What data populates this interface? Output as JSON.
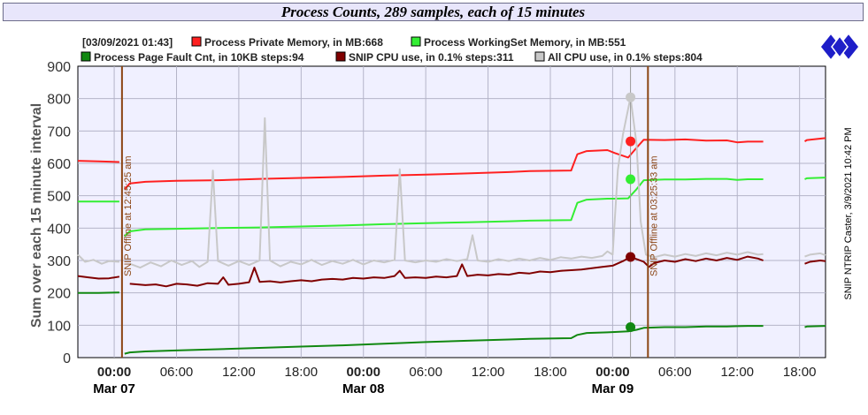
{
  "window": {
    "side_label": "SNIP NTRIP Caster, 3/9/2021 10:42 PM"
  },
  "logo": {
    "icon": "snip-diamond-logo-icon",
    "colors": [
      "#1e1ec8",
      "#ffffff"
    ]
  },
  "chart_data": {
    "type": "line",
    "title": "Process Counts, 289 samples, each of 15 minutes",
    "ylabel": "Sum over each 15 minute interval",
    "xlabel": "",
    "ylim": [
      0,
      900
    ],
    "y_ticks": [
      0,
      100,
      200,
      300,
      400,
      500,
      600,
      700,
      800,
      900
    ],
    "x_range_hours": [
      -3.5,
      68.5
    ],
    "grid": true,
    "legend_position": "top",
    "plot_background": "#f0f0ff",
    "x_ticks": [
      {
        "h": 0,
        "label": "00:00",
        "day": "Mar 07"
      },
      {
        "h": 6,
        "label": "06:00"
      },
      {
        "h": 12,
        "label": "12:00"
      },
      {
        "h": 18,
        "label": "18:00"
      },
      {
        "h": 24,
        "label": "00:00",
        "day": "Mar 08"
      },
      {
        "h": 30,
        "label": "06:00"
      },
      {
        "h": 36,
        "label": "12:00"
      },
      {
        "h": 42,
        "label": "18:00"
      },
      {
        "h": 48,
        "label": "00:00",
        "day": "Mar 09"
      },
      {
        "h": 54,
        "label": "06:00"
      },
      {
        "h": 60,
        "label": "12:00"
      },
      {
        "h": 66,
        "label": "18:00"
      }
    ],
    "legend_header": "[03/09/2021 01:43]",
    "cursor": {
      "h": 49.72,
      "label": "[03/09/2021 01:43]"
    },
    "annotations": [
      {
        "h": 0.75,
        "text": "SNIP Offline at 12:45:25 am",
        "color": "#8b4513"
      },
      {
        "h": 51.4,
        "text": "SNIP Offline at 03:25:33 am",
        "color": "#8b4513"
      }
    ],
    "series": [
      {
        "name": "Process Private Memory, in MB:668",
        "color": "#ff2020",
        "width": 2,
        "marker_value": 668,
        "points": [
          [
            -3.5,
            608
          ],
          [
            -1.5,
            606
          ],
          [
            0.5,
            604
          ],
          [
            null,
            null
          ],
          [
            1.0,
            520
          ],
          [
            1.5,
            538
          ],
          [
            3,
            543
          ],
          [
            6,
            546
          ],
          [
            10,
            548
          ],
          [
            14,
            552
          ],
          [
            18,
            555
          ],
          [
            22,
            558
          ],
          [
            26,
            562
          ],
          [
            30,
            565
          ],
          [
            34,
            569
          ],
          [
            38,
            573
          ],
          [
            40,
            576
          ],
          [
            44,
            578
          ],
          [
            44.6,
            628
          ],
          [
            45.5,
            638
          ],
          [
            47.5,
            641
          ],
          [
            48.2,
            632
          ],
          [
            49.5,
            618
          ],
          [
            50.3,
            648
          ],
          [
            51,
            673
          ],
          [
            53,
            672
          ],
          [
            55,
            674
          ],
          [
            57,
            670
          ],
          [
            59,
            671
          ],
          [
            60,
            665
          ],
          [
            61,
            667
          ],
          [
            62.5,
            667
          ],
          [
            null,
            null
          ],
          [
            66.5,
            668
          ],
          [
            66.7,
            672
          ],
          [
            68.5,
            678
          ]
        ]
      },
      {
        "name": "Process WorkingSet Memory, in MB:551",
        "color": "#33ee33",
        "width": 2,
        "marker_value": 551,
        "points": [
          [
            -3.5,
            482
          ],
          [
            -1.5,
            482
          ],
          [
            0.5,
            482
          ],
          [
            null,
            null
          ],
          [
            1.0,
            375
          ],
          [
            1.5,
            390
          ],
          [
            3,
            396
          ],
          [
            6,
            398
          ],
          [
            10,
            400
          ],
          [
            14,
            402
          ],
          [
            18,
            405
          ],
          [
            22,
            408
          ],
          [
            26,
            412
          ],
          [
            30,
            415
          ],
          [
            34,
            418
          ],
          [
            38,
            421
          ],
          [
            40,
            423
          ],
          [
            44,
            425
          ],
          [
            44.6,
            478
          ],
          [
            45.5,
            488
          ],
          [
            47.5,
            491
          ],
          [
            48.2,
            491
          ],
          [
            49.5,
            492
          ],
          [
            50.3,
            520
          ],
          [
            51,
            548
          ],
          [
            53,
            550
          ],
          [
            55,
            550
          ],
          [
            57,
            552
          ],
          [
            59,
            552
          ],
          [
            60,
            549
          ],
          [
            61,
            551
          ],
          [
            62.5,
            551
          ],
          [
            null,
            null
          ],
          [
            66.5,
            551
          ],
          [
            66.7,
            554
          ],
          [
            68.5,
            556
          ]
        ]
      },
      {
        "name": "Process Page Fault Cnt, in 10KB steps:94",
        "color": "#118811",
        "width": 2,
        "marker_value": 94,
        "points": [
          [
            -3.5,
            200
          ],
          [
            -1.5,
            200
          ],
          [
            0.5,
            201
          ],
          [
            null,
            null
          ],
          [
            1.0,
            12
          ],
          [
            1.5,
            16
          ],
          [
            3,
            19
          ],
          [
            6,
            22
          ],
          [
            10,
            26
          ],
          [
            14,
            30
          ],
          [
            18,
            34
          ],
          [
            22,
            38
          ],
          [
            26,
            43
          ],
          [
            30,
            48
          ],
          [
            34,
            52
          ],
          [
            38,
            56
          ],
          [
            40,
            58
          ],
          [
            44,
            60
          ],
          [
            44.6,
            70
          ],
          [
            45.5,
            76
          ],
          [
            47.5,
            78
          ],
          [
            48.2,
            79
          ],
          [
            49.5,
            81
          ],
          [
            50.3,
            86
          ],
          [
            51,
            92
          ],
          [
            53,
            94
          ],
          [
            55,
            94
          ],
          [
            57,
            96
          ],
          [
            59,
            96
          ],
          [
            60,
            97
          ],
          [
            61,
            98
          ],
          [
            62.5,
            98
          ],
          [
            null,
            null
          ],
          [
            66.5,
            94
          ],
          [
            66.7,
            96
          ],
          [
            68.5,
            98
          ]
        ]
      },
      {
        "name": "SNIP CPU use, in 0.1% steps:311",
        "color": "#800000",
        "width": 2,
        "marker_value": 311,
        "points": [
          [
            -3.5,
            252
          ],
          [
            -2.5,
            248
          ],
          [
            -1.5,
            244
          ],
          [
            -0.5,
            245
          ],
          [
            0.5,
            250
          ],
          [
            null,
            null
          ],
          [
            1.5,
            228
          ],
          [
            3,
            224
          ],
          [
            4,
            226
          ],
          [
            5,
            220
          ],
          [
            6,
            228
          ],
          [
            7,
            226
          ],
          [
            8,
            222
          ],
          [
            9,
            230
          ],
          [
            10,
            228
          ],
          [
            10.5,
            248
          ],
          [
            11,
            225
          ],
          [
            12,
            228
          ],
          [
            13,
            233
          ],
          [
            13.5,
            278
          ],
          [
            14,
            234
          ],
          [
            15,
            236
          ],
          [
            16,
            232
          ],
          [
            17,
            236
          ],
          [
            18,
            239
          ],
          [
            19,
            236
          ],
          [
            20,
            241
          ],
          [
            21,
            243
          ],
          [
            22,
            241
          ],
          [
            23,
            246
          ],
          [
            24,
            244
          ],
          [
            25,
            248
          ],
          [
            26,
            246
          ],
          [
            27,
            252
          ],
          [
            27.5,
            268
          ],
          [
            28,
            246
          ],
          [
            29,
            248
          ],
          [
            30,
            246
          ],
          [
            31,
            250
          ],
          [
            32,
            248
          ],
          [
            33,
            252
          ],
          [
            33.5,
            288
          ],
          [
            34,
            252
          ],
          [
            35,
            256
          ],
          [
            36,
            254
          ],
          [
            37,
            258
          ],
          [
            38,
            256
          ],
          [
            39,
            262
          ],
          [
            40,
            260
          ],
          [
            41,
            266
          ],
          [
            42,
            264
          ],
          [
            43,
            268
          ],
          [
            44,
            270
          ],
          [
            45,
            272
          ],
          [
            46,
            276
          ],
          [
            47,
            280
          ],
          [
            48,
            284
          ],
          [
            49,
            298
          ],
          [
            49.72,
            311
          ],
          [
            50.5,
            302
          ],
          [
            51,
            296
          ],
          [
            51.5,
            280
          ],
          [
            52,
            292
          ],
          [
            53,
            300
          ],
          [
            54,
            296
          ],
          [
            55,
            304
          ],
          [
            56,
            298
          ],
          [
            57,
            306
          ],
          [
            58,
            300
          ],
          [
            59,
            308
          ],
          [
            60,
            302
          ],
          [
            61,
            312
          ],
          [
            62,
            306
          ],
          [
            62.5,
            300
          ],
          [
            null,
            null
          ],
          [
            66.5,
            290
          ],
          [
            67,
            296
          ],
          [
            68,
            300
          ],
          [
            68.5,
            298
          ]
        ]
      },
      {
        "name": "All CPU use, in 0.1% steps:804",
        "color": "#c8c8c8",
        "width": 2,
        "marker_value": 804,
        "points": [
          [
            -3.5,
            318
          ],
          [
            -2.8,
            296
          ],
          [
            -2,
            302
          ],
          [
            -1.2,
            290
          ],
          [
            -0.5,
            298
          ],
          [
            0.5,
            296
          ],
          [
            null,
            null
          ],
          [
            1.5,
            290
          ],
          [
            2.5,
            278
          ],
          [
            3.5,
            294
          ],
          [
            4.5,
            282
          ],
          [
            5.5,
            300
          ],
          [
            6.5,
            286
          ],
          [
            7.5,
            298
          ],
          [
            8.2,
            280
          ],
          [
            9,
            296
          ],
          [
            9.5,
            578
          ],
          [
            10,
            298
          ],
          [
            11,
            284
          ],
          [
            12,
            298
          ],
          [
            13,
            286
          ],
          [
            14,
            300
          ],
          [
            14.5,
            740
          ],
          [
            15,
            300
          ],
          [
            16,
            282
          ],
          [
            17,
            296
          ],
          [
            18,
            288
          ],
          [
            19,
            302
          ],
          [
            20,
            286
          ],
          [
            21,
            298
          ],
          [
            22,
            290
          ],
          [
            23,
            302
          ],
          [
            24,
            288
          ],
          [
            25,
            300
          ],
          [
            26,
            294
          ],
          [
            27,
            302
          ],
          [
            27.5,
            582
          ],
          [
            28,
            300
          ],
          [
            29,
            294
          ],
          [
            30,
            300
          ],
          [
            31,
            296
          ],
          [
            32,
            304
          ],
          [
            33,
            298
          ],
          [
            34,
            304
          ],
          [
            34.5,
            378
          ],
          [
            35,
            300
          ],
          [
            36,
            296
          ],
          [
            37,
            304
          ],
          [
            38,
            298
          ],
          [
            39,
            306
          ],
          [
            40,
            300
          ],
          [
            41,
            308
          ],
          [
            42,
            302
          ],
          [
            43,
            310
          ],
          [
            44,
            306
          ],
          [
            45,
            312
          ],
          [
            46,
            308
          ],
          [
            47,
            314
          ],
          [
            47.5,
            328
          ],
          [
            48,
            318
          ],
          [
            48.5,
            580
          ],
          [
            49,
            690
          ],
          [
            49.72,
            804
          ],
          [
            50.3,
            660
          ],
          [
            50.7,
            420
          ],
          [
            51.2,
            318
          ],
          [
            52,
            310
          ],
          [
            53,
            318
          ],
          [
            54,
            312
          ],
          [
            55,
            320
          ],
          [
            56,
            314
          ],
          [
            57,
            322
          ],
          [
            58,
            316
          ],
          [
            59,
            324
          ],
          [
            60,
            318
          ],
          [
            61,
            326
          ],
          [
            62,
            318
          ],
          [
            62.5,
            320
          ],
          [
            null,
            null
          ],
          [
            66.5,
            312
          ],
          [
            67,
            318
          ],
          [
            68,
            322
          ],
          [
            68.5,
            316
          ]
        ]
      }
    ]
  }
}
